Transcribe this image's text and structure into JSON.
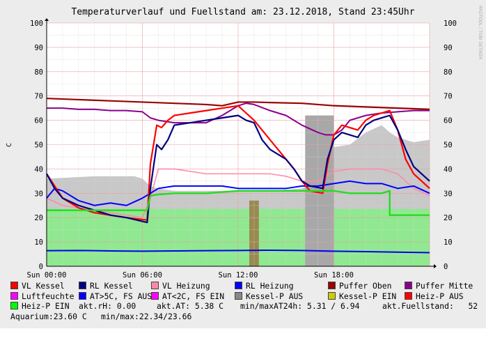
{
  "chart_data": {
    "type": "line",
    "title": "Temperaturverlauf und Fuellstand am: 23.12.2018, Stand 23:45Uhr",
    "watermark": "RRDTOOL / TOBI OETIKER",
    "ylabel": "C",
    "ylim": [
      0,
      100
    ],
    "yticks": [
      0,
      10,
      20,
      30,
      40,
      50,
      60,
      70,
      80,
      90,
      100
    ],
    "xlim": [
      0,
      24
    ],
    "xticks": [
      {
        "x": 0,
        "label": "Sun 00:00"
      },
      {
        "x": 6,
        "label": "Sun 06:00"
      },
      {
        "x": 12,
        "label": "Sun 12:00"
      },
      {
        "x": 18,
        "label": "Sun 18:00"
      }
    ],
    "grid": true,
    "colors": {
      "vl_kessel": "#ff0000",
      "rl_kessel": "#000080",
      "vl_heizung": "#ff8aa8",
      "rl_heizung": "#0000ff",
      "puffer_oben": "#990000",
      "puffer_mitte": "#8b008b",
      "luftfeuchte": "#c8c8c8",
      "kessel_p_aus": "#a8a8a8",
      "heiz_p_aus": "#9a8a50",
      "aquarium": "#90e890",
      "heiz_p_ein": "#22dd22",
      "blue_bottom": "#0000ee"
    },
    "series": [
      {
        "name": "VL Kessel",
        "key": "vl_kessel",
        "x": [
          0,
          0.5,
          1,
          2,
          3,
          4,
          5,
          6.3,
          6.5,
          6.9,
          7.2,
          7.6,
          8,
          9,
          10,
          11,
          12,
          12.5,
          13,
          13.5,
          14,
          14.5,
          15,
          15.5,
          16,
          16.5,
          17.3,
          17.6,
          18,
          18.5,
          19,
          19.5,
          20,
          20.5,
          21,
          21.5,
          22,
          22.5,
          23,
          23.5,
          24
        ],
        "y": [
          38,
          33,
          28,
          24,
          22,
          21,
          20,
          19,
          42,
          58,
          57,
          60,
          62,
          63,
          64,
          65,
          66,
          63,
          60,
          56,
          52,
          48,
          44,
          40,
          35,
          31,
          30,
          42,
          54,
          58,
          57,
          56,
          60,
          62,
          63,
          64,
          56,
          44,
          38,
          35,
          32
        ]
      },
      {
        "name": "RL Kessel",
        "key": "rl_kessel",
        "x": [
          0,
          0.5,
          1,
          2,
          3,
          4,
          5,
          6.3,
          6.5,
          6.9,
          7.2,
          7.6,
          8,
          9,
          10,
          11,
          12,
          12.5,
          13,
          13.5,
          14,
          14.5,
          15,
          15.5,
          16,
          16.5,
          17.3,
          17.6,
          18,
          18.5,
          19,
          19.5,
          20,
          20.5,
          21,
          21.5,
          22,
          22.5,
          23,
          23.5,
          24
        ],
        "y": [
          38,
          32,
          28,
          25,
          23,
          21,
          20,
          18,
          32,
          50,
          48,
          52,
          58,
          59,
          60,
          61,
          62,
          60,
          59,
          52,
          48,
          46,
          44,
          40,
          35,
          33,
          32,
          44,
          52,
          55,
          54,
          53,
          58,
          60,
          61,
          62,
          56,
          48,
          41,
          38,
          35
        ]
      },
      {
        "name": "VL Heizung",
        "key": "vl_heizung",
        "x": [
          0,
          1,
          2,
          3,
          4,
          5,
          6,
          6.5,
          7,
          8,
          9,
          10,
          11,
          12,
          13,
          14,
          15,
          16,
          17,
          18,
          19,
          20,
          21,
          22,
          23,
          24
        ],
        "y": [
          28,
          25,
          24,
          23,
          22,
          21,
          20,
          28,
          40,
          40,
          39,
          38,
          38,
          38,
          38,
          38,
          37,
          35,
          35,
          39,
          40,
          40,
          40,
          38,
          32,
          29
        ]
      },
      {
        "name": "RL Heizung",
        "key": "rl_heizung",
        "x": [
          0,
          0.5,
          1,
          2,
          3,
          4,
          5,
          6,
          6.5,
          7,
          8,
          9,
          10,
          11,
          12,
          13,
          14,
          15,
          16,
          17,
          18,
          19,
          20,
          21,
          22,
          23,
          24
        ],
        "y": [
          28,
          32,
          31,
          27,
          25,
          26,
          25,
          28,
          30,
          32,
          33,
          33,
          33,
          33,
          32,
          32,
          32,
          32,
          33,
          33,
          34,
          35,
          34,
          34,
          32,
          33,
          30
        ]
      },
      {
        "name": "Puffer Oben",
        "key": "puffer_oben",
        "x": [
          0,
          2,
          4,
          6,
          8,
          10,
          11,
          12,
          13,
          14,
          16,
          18,
          20,
          22,
          24
        ],
        "y": [
          69,
          68.5,
          68,
          67.5,
          67,
          66.5,
          66,
          67.5,
          67.5,
          67.3,
          67,
          66,
          65.5,
          65,
          64.5
        ]
      },
      {
        "name": "Puffer Mitte",
        "key": "puffer_mitte",
        "x": [
          0,
          1,
          2,
          3,
          4,
          5,
          6,
          6.5,
          7,
          8,
          9,
          10,
          11,
          12,
          12.5,
          13,
          14,
          15,
          16,
          17,
          17.5,
          18,
          18.5,
          19,
          20,
          21,
          22,
          23,
          24
        ],
        "y": [
          65,
          65,
          64.5,
          64.5,
          64,
          64,
          63.5,
          61,
          60,
          59,
          59,
          59,
          62,
          66,
          67,
          66.5,
          64,
          62,
          58,
          55,
          54,
          54,
          56,
          60,
          62,
          63,
          63.5,
          64,
          64
        ]
      },
      {
        "name": "Luftfeuchte",
        "key": "luftfeuchte",
        "x": [
          0,
          3,
          5.5,
          6,
          6.5,
          7,
          8,
          10,
          11,
          12,
          13,
          14,
          16,
          17,
          18,
          19,
          20,
          21,
          21.5,
          22,
          22.5,
          23,
          24
        ],
        "y": [
          36,
          37,
          37,
          36,
          33,
          32,
          31,
          31,
          31,
          31,
          31,
          31,
          32,
          35,
          49,
          50,
          55,
          58,
          55,
          53,
          52,
          51,
          52
        ]
      },
      {
        "name": "Kessel-P AUS",
        "key": "kessel_p_aus",
        "x": [
          16.2,
          18
        ],
        "y": [
          62,
          62
        ]
      },
      {
        "name": "Heiz-P AUS",
        "key": "heiz_p_aus",
        "x": [
          12.7,
          13.3
        ],
        "y": [
          27,
          27
        ]
      },
      {
        "name": "Heiz-P EIN",
        "key": "heiz_p_ein",
        "x": [
          0,
          5,
          6,
          6.3,
          6.5,
          7,
          8,
          10,
          12,
          14,
          16,
          18,
          19,
          20,
          21,
          21.5,
          21.5,
          24
        ],
        "y": [
          23,
          23,
          23,
          23,
          29,
          29.5,
          30,
          30,
          31,
          31,
          31,
          31,
          30,
          30,
          30,
          31,
          21,
          21
        ]
      },
      {
        "name": "Aquarium",
        "key": "aquarium",
        "x": [
          0,
          24
        ],
        "y": [
          23.6,
          23.6
        ]
      },
      {
        "name": "AT>5C, FS AUS",
        "key": "blue_bottom",
        "x": [
          0,
          2,
          4,
          6,
          8,
          10,
          12,
          14,
          16,
          18,
          20,
          22,
          24
        ],
        "y": [
          6.4,
          6.5,
          6.3,
          6.2,
          6.3,
          6.4,
          6.5,
          6.6,
          6.5,
          6.2,
          6.0,
          5.8,
          5.6
        ]
      }
    ]
  },
  "legend": {
    "items": [
      {
        "label": "VL Kessel",
        "color": "#ff0000"
      },
      {
        "label": "RL Kessel",
        "color": "#000080"
      },
      {
        "label": "VL Heizung",
        "color": "#ff8aa8"
      },
      {
        "label": "RL Heizung",
        "color": "#0000ff"
      },
      {
        "label": "Puffer Oben",
        "color": "#990000"
      },
      {
        "label": "Puffer Mitte",
        "color": "#8b008b"
      },
      {
        "label": "Luftfeuchte",
        "color": "#ff00ff"
      },
      {
        "label": "AT>5C, FS AUS",
        "color": "#0000ff"
      },
      {
        "label": "AT<2C, FS EIN",
        "color": "#ff00ff"
      },
      {
        "label": "Kessel-P AUS",
        "color": "#888888"
      },
      {
        "label": "Kessel-P EIN",
        "color": "#cccc00"
      },
      {
        "label": "Heiz-P AUS",
        "color": "#ff0000"
      },
      {
        "label": "Heiz-P EIN",
        "color": "#00ff00"
      }
    ],
    "stats": {
      "rh": "akt.rH: 0.00",
      "at": "akt.AT: 5.38 C",
      "minmax24": "min/maxAT24h: 5.31 / 6.94",
      "fuellstand": "akt.Fuellstand:   52",
      "aquarium": "Aquarium:23.60 C",
      "aquarium_minmax": "min/max:22.34/23.66"
    }
  }
}
